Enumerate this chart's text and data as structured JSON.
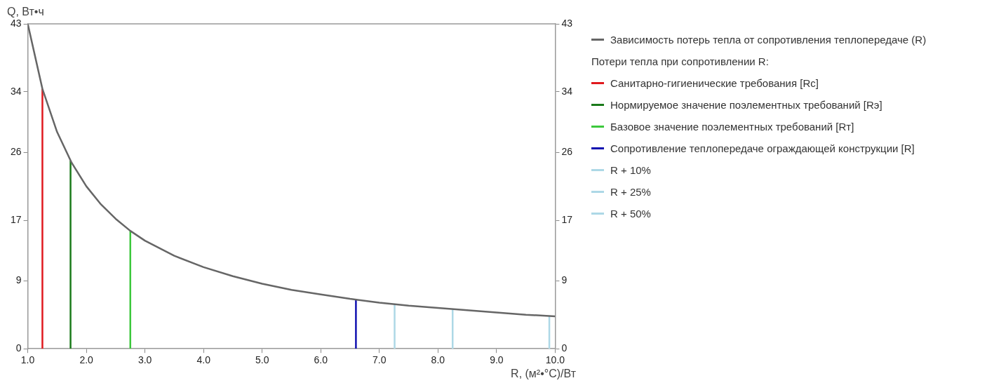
{
  "chart_data": {
    "type": "line",
    "xlabel": "R, (м²•°C)/Вт",
    "ylabel": "Q, Вт•ч",
    "legend_title": "Потери тепла при сопротивлении R:",
    "xlim": [
      1,
      10
    ],
    "xticks": [
      {
        "value": 1,
        "label": "1.0"
      },
      {
        "value": 2,
        "label": "2.0"
      },
      {
        "value": 3,
        "label": "3.0"
      },
      {
        "value": 4,
        "label": "4.0"
      },
      {
        "value": 5,
        "label": "5.0"
      },
      {
        "value": 6,
        "label": "6.0"
      },
      {
        "value": 7,
        "label": "7.0"
      },
      {
        "value": 8,
        "label": "8.0"
      },
      {
        "value": 9,
        "label": "9.0"
      },
      {
        "value": 10,
        "label": "10.0"
      }
    ],
    "ylim": [
      0,
      43
    ],
    "yticks": [
      0,
      9,
      17,
      26,
      34,
      43
    ],
    "y2lim": [
      0,
      43
    ],
    "y2ticks": [
      0,
      9,
      17,
      26,
      34,
      43
    ],
    "grid": false,
    "legend": "right",
    "marker": "none",
    "line_style": "solid",
    "series": [
      {
        "name": "Зависимость потерь тепла от сопротивления теплопередаче (R)",
        "color": "#666666",
        "x": [
          1,
          1.25,
          1.5,
          1.75,
          2,
          2.25,
          2.5,
          2.75,
          3,
          3.5,
          4,
          4.5,
          5,
          5.5,
          6,
          6.5,
          7,
          7.5,
          8,
          8.5,
          9,
          9.5,
          10
        ],
        "values": [
          43,
          34.4,
          28.7,
          24.6,
          21.5,
          19.1,
          17.2,
          15.6,
          14.3,
          12.3,
          10.8,
          9.6,
          8.6,
          7.8,
          7.2,
          6.6,
          6.1,
          5.7,
          5.4,
          5.1,
          4.8,
          4.5,
          4.3
        ]
      },
      {
        "name": "Санитарно-гигиенические требования [Rc]",
        "color": "#e0191e",
        "x": [
          1.25,
          1.25
        ],
        "values": [
          0,
          34.4
        ]
      },
      {
        "name": "Нормируемое значение поэлементных требований [Rэ]",
        "color": "#1a7a1a",
        "x": [
          1.73,
          1.73
        ],
        "values": [
          0,
          24.9
        ]
      },
      {
        "name": "Базовое значение поэлементных требований [Rт]",
        "color": "#3cc83c",
        "x": [
          2.75,
          2.75
        ],
        "values": [
          0,
          15.6
        ]
      },
      {
        "name": "Сопротивление теплопередаче ограждающей конструкции [R]",
        "color": "#1010b0",
        "x": [
          6.6,
          6.6
        ],
        "values": [
          0,
          6.5
        ]
      },
      {
        "name": "R + 10%",
        "color": "#add8e6",
        "x": [
          7.26,
          7.26
        ],
        "values": [
          0,
          5.9
        ]
      },
      {
        "name": "R + 25%",
        "color": "#add8e6",
        "x": [
          8.25,
          8.25
        ],
        "values": [
          0,
          5.2
        ]
      },
      {
        "name": "R + 50%",
        "color": "#add8e6",
        "x": [
          9.9,
          9.9
        ],
        "values": [
          0,
          4.3
        ]
      }
    ]
  }
}
